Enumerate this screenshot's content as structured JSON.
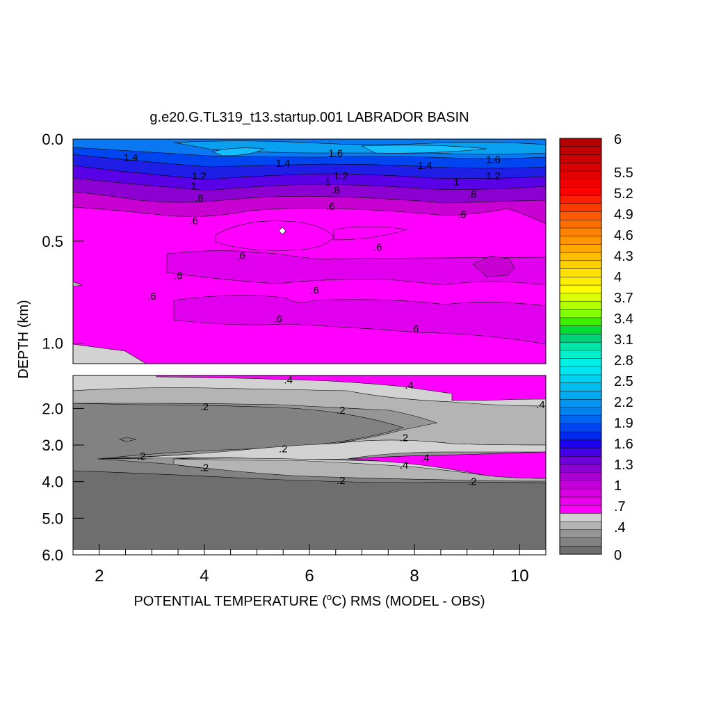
{
  "chart_data": {
    "type": "heatmap",
    "title": "g.e20.G.TL319_t13.startup.001 LABRADOR BASIN",
    "xlabel": "POTENTIAL TEMPERATURE (°C) RMS (MODEL - OBS)",
    "xlabel_prefix": "POTENTIAL TEMPERATURE (",
    "xlabel_sup": "o",
    "xlabel_suffix": "C) RMS (MODEL - OBS)",
    "ylabel": "DEPTH (km)",
    "xlim": [
      1.5,
      10.5
    ],
    "x_ticks": [
      2,
      4,
      6,
      8,
      10
    ],
    "x_tick_labels": [
      "2",
      "4",
      "6",
      "8",
      "10"
    ],
    "upper_panel": {
      "ylim": [
        0.0,
        1.1
      ],
      "y_ticks": [
        0.0,
        0.5,
        1.0
      ],
      "y_tick_labels": [
        "0.0",
        "0.5",
        "1.0"
      ],
      "contour_labels": [
        {
          "text": "1.4",
          "x": 2.6,
          "y": 0.09
        },
        {
          "text": "1.4",
          "x": 5.5,
          "y": 0.12
        },
        {
          "text": "1.6",
          "x": 6.5,
          "y": 0.07
        },
        {
          "text": "1.4",
          "x": 8.2,
          "y": 0.13
        },
        {
          "text": "1.6",
          "x": 9.5,
          "y": 0.1
        },
        {
          "text": "1.2",
          "x": 3.9,
          "y": 0.18
        },
        {
          "text": "1",
          "x": 3.8,
          "y": 0.23
        },
        {
          "text": "1.2",
          "x": 6.6,
          "y": 0.18
        },
        {
          "text": "1",
          "x": 6.35,
          "y": 0.21
        },
        {
          "text": "1.2",
          "x": 9.5,
          "y": 0.18
        },
        {
          "text": "1",
          "x": 8.8,
          "y": 0.21
        },
        {
          "text": ".8",
          "x": 3.9,
          "y": 0.29
        },
        {
          "text": ".8",
          "x": 6.5,
          "y": 0.25
        },
        {
          "text": ".8",
          "x": 9.1,
          "y": 0.27
        },
        {
          "text": ".6",
          "x": 6.4,
          "y": 0.33
        },
        {
          "text": ".6",
          "x": 3.8,
          "y": 0.4
        },
        {
          "text": ".6",
          "x": 8.9,
          "y": 0.37
        },
        {
          "text": ".6",
          "x": 7.3,
          "y": 0.53
        },
        {
          "text": ".6",
          "x": 4.7,
          "y": 0.57
        },
        {
          "text": ".6",
          "x": 3.5,
          "y": 0.67
        },
        {
          "text": ".6",
          "x": 6.1,
          "y": 0.74
        },
        {
          "text": ".6",
          "x": 3.0,
          "y": 0.77
        },
        {
          "text": ".6",
          "x": 5.4,
          "y": 0.88
        },
        {
          "text": ".6",
          "x": 8.0,
          "y": 0.93
        }
      ]
    },
    "lower_panel": {
      "ylim": [
        1.1,
        6.0
      ],
      "y_ticks": [
        2.0,
        3.0,
        4.0,
        5.0,
        6.0
      ],
      "y_tick_labels": [
        "2.0",
        "3.0",
        "4.0",
        "5.0",
        "6.0"
      ],
      "contour_labels": [
        {
          "text": ".4",
          "x": 5.6,
          "y": 1.22
        },
        {
          "text": ".4",
          "x": 7.9,
          "y": 1.37
        },
        {
          "text": ".4",
          "x": 10.4,
          "y": 1.9
        },
        {
          "text": ".2",
          "x": 4.0,
          "y": 1.95
        },
        {
          "text": ".2",
          "x": 6.6,
          "y": 2.05
        },
        {
          "text": ".2",
          "x": 7.8,
          "y": 2.8
        },
        {
          "text": ".2",
          "x": 5.5,
          "y": 3.1
        },
        {
          "text": ".2",
          "x": 2.8,
          "y": 3.3
        },
        {
          "text": ".4",
          "x": 8.2,
          "y": 3.35
        },
        {
          "text": ".4",
          "x": 7.8,
          "y": 3.55
        },
        {
          "text": ".2",
          "x": 4.0,
          "y": 3.62
        },
        {
          "text": ".2",
          "x": 6.6,
          "y": 3.97
        },
        {
          "text": ".2",
          "x": 9.1,
          "y": 4.0
        }
      ]
    },
    "colorbar": {
      "labels": [
        "6",
        "5.5",
        "5.2",
        "4.9",
        "4.6",
        "4.3",
        "4",
        "3.7",
        "3.4",
        "3.1",
        "2.8",
        "2.5",
        "2.2",
        "1.9",
        "1.6",
        "1.3",
        "1",
        ".7",
        ".4",
        "0"
      ],
      "colors_top_to_bottom": [
        "#b40000",
        "#c00000",
        "#cc0000",
        "#d80000",
        "#e40000",
        "#f00000",
        "#ff0000",
        "#ff1e00",
        "#ff3c00",
        "#ff5a00",
        "#ff6e00",
        "#ff8200",
        "#ff9600",
        "#ffaa00",
        "#ffbe00",
        "#ffd000",
        "#ffe000",
        "#fff000",
        "#ffff00",
        "#dcff00",
        "#b4ff00",
        "#82ff00",
        "#3cf000",
        "#00dc32",
        "#00d278",
        "#00e6aa",
        "#00f0cc",
        "#00f0e6",
        "#00e6f0",
        "#00d2f0",
        "#00bef0",
        "#00aaf0",
        "#0096f0",
        "#0082f0",
        "#0064f0",
        "#0046f0",
        "#0028f0",
        "#1e00f0",
        "#4600e6",
        "#6e00dc",
        "#8c00d2",
        "#aa00d2",
        "#c300d7",
        "#d700e1",
        "#eb00ee",
        "#ff00ff",
        "#d2d2d2",
        "#b4b4b4",
        "#969696",
        "#828282",
        "#6e6e6e"
      ]
    },
    "colors": {
      "magenta": "#ff00ff",
      "magenta_mid": "#e100ee",
      "magenta_dark": "#c800d2",
      "purple": "#8c00d2",
      "violet": "#5a00e6",
      "blue_deep": "#1e1ee6",
      "blue": "#0046f0",
      "blue_mid": "#0a78f0",
      "sky": "#0aa0f0",
      "cyan": "#14beff",
      "gray_light": "#d2d2d2",
      "gray_mid": "#b4b4b4",
      "gray": "#969696",
      "gray_dark": "#828282",
      "gray_deep": "#6e6e6e"
    }
  }
}
